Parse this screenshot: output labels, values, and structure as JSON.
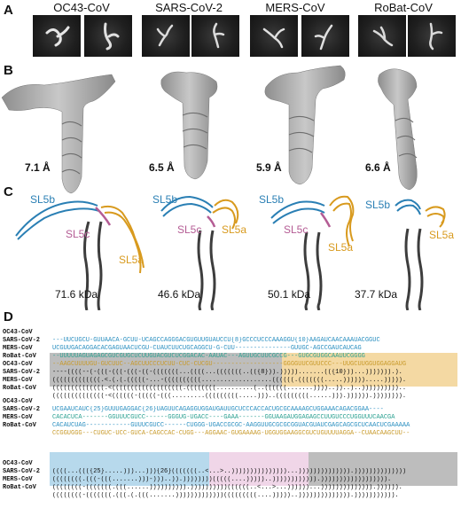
{
  "panels": {
    "a": "A",
    "b": "B",
    "c": "C",
    "d": "D"
  },
  "viruses": [
    "OC43-CoV",
    "SARS-CoV-2",
    "MERS-CoV",
    "RoBat-CoV"
  ],
  "resolutions": [
    "7.1 Å",
    "6.5 Å",
    "5.9 Å",
    "6.6 Å"
  ],
  "masses": [
    "71.6 kDa",
    "46.6 kDa",
    "50.1 kDa",
    "37.7 kDa"
  ],
  "structure_labels": {
    "sl5a": "SL5a",
    "sl5b": "SL5b",
    "sl5c": "SL5c"
  },
  "colors": {
    "sl5a": "#d89a1e",
    "sl5b": "#2a7fb4",
    "sl5c": "#b45c94",
    "stem": "#3d3d3d",
    "map": "#a8a8a8"
  },
  "alignment": {
    "block1": {
      "names": [
        "OC43-CoV",
        "SARS-CoV-2",
        "MERS-CoV",
        "RoBat-CoV",
        "OC43-CoV",
        "SARS-CoV-2",
        "MERS-CoV",
        "RoBat-CoV"
      ],
      "rows": [
        "---UUCUGCU-GUUAACA-GCUU-UCAGCCAGGGACGUGUUGUAUCCU{8}GCCCUCCCAAAGGU{10}AAGAUCAACAAAUACGGUC",
        "UCGUUGACAGGACACGAGUAACUCGU-CUAUCUUCUGCAGGCU-G-CUU---------------GUUGC-AGCCGAUCAUCAG",
        "--UUUUUAGUAGAGCGUCGUGCUCUUGUACGUCUCGGACAC-AAUAC---AGUUGCUUCGCCG---GUGCGUGGCAAUUCGGGG",
        "--AAGCUUUUGU-GUCUUC--AGCUUCCCUCUU-CUC-CUCGU-------------------GGGGUUCGUUCCC---UUGCUUGGUGGAGGAUG",
        "----((((--(-(((-(((-(((-((-(((((((...((((...(((((((..(({8})).))))).......(({10}))...))))))).).",
        "(((((((((((((.<.(.(.(((((-...-((((((((((...................((((((.(((((((.....)))))).....))))).",
        "((((((((((((((.<(((((((((((((((((((.((((((((..........(..((((((.......))))..))..)..))))))))))..",
        "((((((((((((((-<((((((-(((((-(((.........(((((((((.....)))..(((((((((......))).)))))).))))))))."
      ]
    },
    "block2": {
      "names": [
        "OC43-CoV",
        "SARS-CoV-2",
        "MERS-CoV",
        "RoBat-CoV",
        "OC43-CoV",
        "SARS-CoV-2",
        "MERS-CoV",
        "RoBat-CoV"
      ],
      "rows": [
        "UCGAAUCAUC{25}GUUUGAGGAC{26}UAGUUCAGAGGUGGAUGAUUGCUCCCACCACUGCGCAAAAGCUGGAAACAGACGGAA----",
        "CACACUCA-------GGUUUCGUCC------GGGUG-UGACC----GAAA-------GGUAAGAUGGAGAGCCUUGUCCCUGGUUUCAACGA",
        "CACAUCUAG------------GUUUCGUCC------CUGGG-UGACCGCGC-AAGGUUGCGCGCGGUACGUAUCGAGCAGCGCUCAACUCGAAAAA",
        "CCGGUGGG---CUGUC-UCC-GUCA-CAGCCAC-CUGG---AGGAAC-GUGAAAAG-UGGUGGAAGGCGUCUGUUUUAGGA--CUAACAAGCUU--",
        "((((...((({25}.....)))...))){26}(((((((..<...>..)))))))))))))))...)))))))))))))).))))))))))))))",
        "((((((((.(((-(((.......)))-)))..)).))))))))(((((....)))))..)))))))))))).)))))))))))))))))).",
        "((((((((-(((((((.(((......)))))))))).))))))))))((((((..<...>...))))))...)))))))))))))).)))))).",
        "((((((((-(((((((.(((.(.(((.......)))))))))))))(((((((((....)))))..)))))))))))))).)))))))))))."
      ]
    }
  }
}
